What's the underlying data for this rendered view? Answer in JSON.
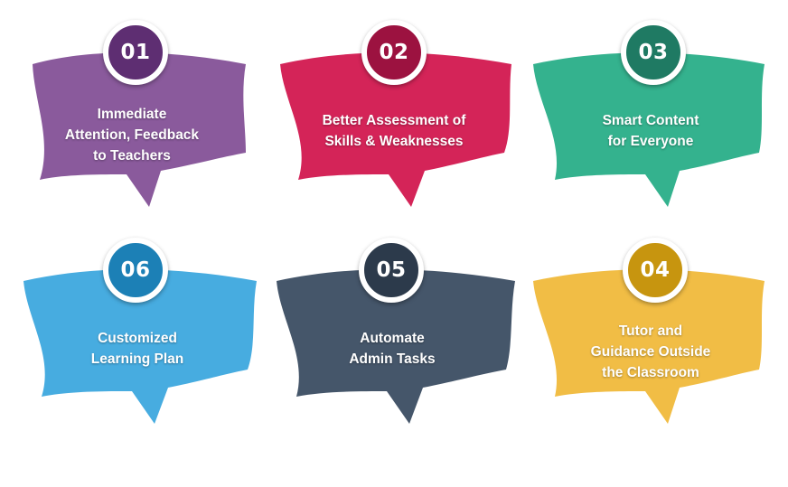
{
  "items": [
    {
      "number": "01",
      "lines": [
        "Immediate",
        "Attention, Feedback",
        "to Teachers"
      ],
      "color": "#8a5a9c",
      "badge_color": "#5e2e72"
    },
    {
      "number": "02",
      "lines": [
        "Better Assessment of",
        "Skills & Weaknesses"
      ],
      "color": "#d42458",
      "badge_color": "#9c1240"
    },
    {
      "number": "03",
      "lines": [
        "Smart Content",
        "for Everyone"
      ],
      "color": "#34b28e",
      "badge_color": "#1f7a63"
    },
    {
      "number": "06",
      "lines": [
        "Customized",
        "Learning Plan"
      ],
      "color": "#47ace0",
      "badge_color": "#1c80b6"
    },
    {
      "number": "05",
      "lines": [
        "Automate",
        "Admin Tasks"
      ],
      "color": "#45566a",
      "badge_color": "#2c3a4b"
    },
    {
      "number": "04",
      "lines": [
        "Tutor and",
        "Guidance Outside",
        "the Classroom"
      ],
      "color": "#f1bd45",
      "badge_color": "#c7950f"
    }
  ]
}
